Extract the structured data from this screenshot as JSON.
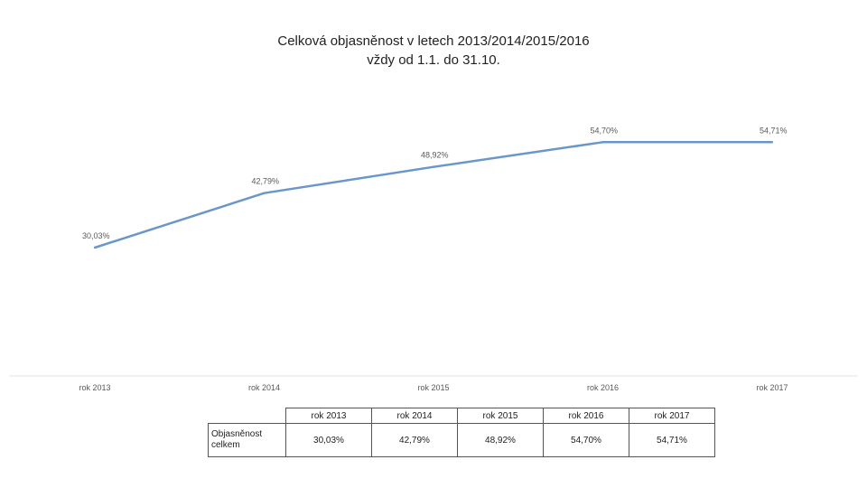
{
  "chart_data": {
    "type": "line",
    "title": "Celková objasněnost v letech 2013/2014/2015/2016",
    "subtitle": "vždy od 1.1. do 31.10.",
    "categories": [
      "rok 2013",
      "rok 2014",
      "rok 2015",
      "rok 2016",
      "rok 2017"
    ],
    "series": [
      {
        "name": "Objasněnost celkem",
        "values": [
          30.03,
          42.79,
          48.92,
          54.7,
          54.71
        ],
        "labels": [
          "30,03%",
          "42,79%",
          "48,92%",
          "54,70%",
          "54,71%"
        ],
        "color": "#6a97c9"
      }
    ],
    "ylim": [
      0,
      70
    ],
    "grid": false,
    "legend": "none"
  },
  "table": {
    "row_header": "Objasněnost celkem",
    "columns": [
      "rok 2013",
      "rok 2014",
      "rok 2015",
      "rok 2016",
      "rok 2017"
    ],
    "values": [
      "30,03%",
      "42,79%",
      "48,92%",
      "54,70%",
      "54,71%"
    ]
  }
}
